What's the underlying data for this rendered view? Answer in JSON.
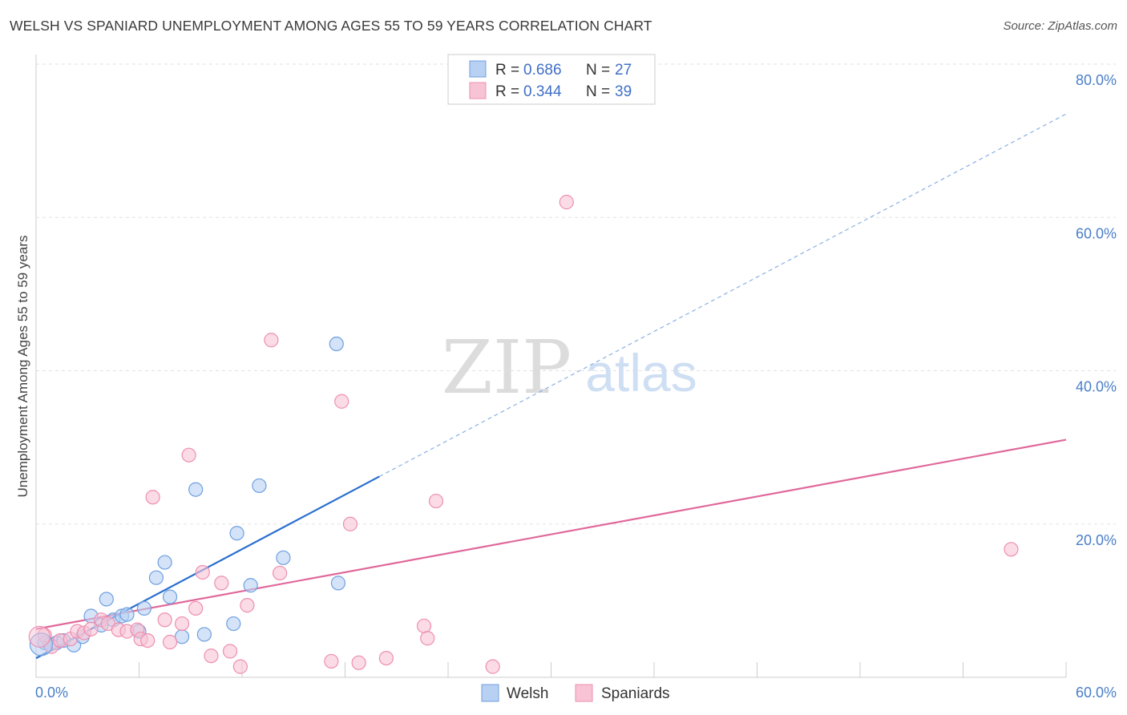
{
  "title": "WELSH VS SPANIARD UNEMPLOYMENT AMONG AGES 55 TO 59 YEARS CORRELATION CHART",
  "source": "Source: ZipAtlas.com",
  "watermark": {
    "zip": "ZIP",
    "atlas": "atlas"
  },
  "chart_data": {
    "type": "scatter",
    "ylabel": "Unemployment Among Ages 55 to 59 years",
    "xlim": [
      0,
      60
    ],
    "ylim": [
      0,
      80
    ],
    "x_tick_labels": [
      "0.0%",
      "60.0%"
    ],
    "y_ticks": [
      {
        "value": 20,
        "label": "20.0%"
      },
      {
        "value": 40,
        "label": "40.0%"
      },
      {
        "value": 60,
        "label": "60.0%"
      },
      {
        "value": 80,
        "label": "80.0%"
      }
    ],
    "grid": true,
    "series": [
      {
        "name": "Welsh",
        "color": "#6fa0e0",
        "fill": "#b8d0f2",
        "line_color": "#2a6fcf",
        "R": "0.686",
        "N": "27",
        "trend": {
          "x0": 0,
          "y0": 2.5,
          "x1": 20,
          "y1": 26.2,
          "dash_to_x": 60,
          "dash_to_y": 73.5
        },
        "points": [
          [
            0.5,
            4.5
          ],
          [
            0.8,
            4.3
          ],
          [
            1.2,
            4.5
          ],
          [
            1.6,
            4.8
          ],
          [
            2.2,
            4.2
          ],
          [
            2.7,
            5.3
          ],
          [
            3.2,
            8.0
          ],
          [
            3.8,
            6.8
          ],
          [
            4.1,
            10.2
          ],
          [
            4.5,
            7.5
          ],
          [
            5.0,
            8.0
          ],
          [
            5.3,
            8.2
          ],
          [
            6.0,
            6.0
          ],
          [
            6.3,
            9.0
          ],
          [
            7.0,
            13.0
          ],
          [
            7.5,
            15.0
          ],
          [
            7.8,
            10.5
          ],
          [
            8.5,
            5.3
          ],
          [
            9.3,
            24.5
          ],
          [
            9.8,
            5.6
          ],
          [
            11.5,
            7.0
          ],
          [
            11.7,
            18.8
          ],
          [
            12.5,
            12.0
          ],
          [
            13.0,
            25.0
          ],
          [
            14.4,
            15.6
          ],
          [
            17.5,
            43.5
          ],
          [
            17.6,
            12.3
          ]
        ]
      },
      {
        "name": "Spaniards",
        "color": "#ee8fb0",
        "fill": "#f7c3d5",
        "line_color": "#e0689a",
        "R": "0.344",
        "N": "39",
        "trend": {
          "x0": 0,
          "y0": 6.3,
          "x1": 60,
          "y1": 31.0
        },
        "points": [
          [
            0.5,
            5.5
          ],
          [
            0.9,
            4.0
          ],
          [
            1.4,
            4.8
          ],
          [
            2.0,
            5.0
          ],
          [
            2.4,
            6.0
          ],
          [
            2.8,
            5.8
          ],
          [
            3.2,
            6.3
          ],
          [
            3.8,
            7.5
          ],
          [
            4.2,
            7.0
          ],
          [
            4.8,
            6.2
          ],
          [
            5.3,
            6.0
          ],
          [
            5.9,
            6.2
          ],
          [
            6.1,
            5.0
          ],
          [
            6.5,
            4.8
          ],
          [
            6.8,
            23.5
          ],
          [
            7.5,
            7.5
          ],
          [
            7.8,
            4.6
          ],
          [
            8.5,
            7.0
          ],
          [
            8.9,
            29.0
          ],
          [
            9.3,
            9.0
          ],
          [
            9.7,
            13.7
          ],
          [
            10.2,
            2.8
          ],
          [
            10.8,
            12.3
          ],
          [
            11.3,
            3.4
          ],
          [
            11.9,
            1.4
          ],
          [
            12.3,
            9.4
          ],
          [
            13.7,
            44.0
          ],
          [
            14.2,
            13.6
          ],
          [
            17.2,
            2.1
          ],
          [
            17.8,
            36.0
          ],
          [
            18.3,
            20.0
          ],
          [
            18.8,
            1.9
          ],
          [
            20.4,
            2.5
          ],
          [
            22.6,
            6.7
          ],
          [
            22.8,
            5.1
          ],
          [
            23.3,
            23.0
          ],
          [
            26.6,
            1.4
          ],
          [
            30.9,
            62.0
          ],
          [
            56.8,
            16.7
          ]
        ]
      }
    ]
  }
}
